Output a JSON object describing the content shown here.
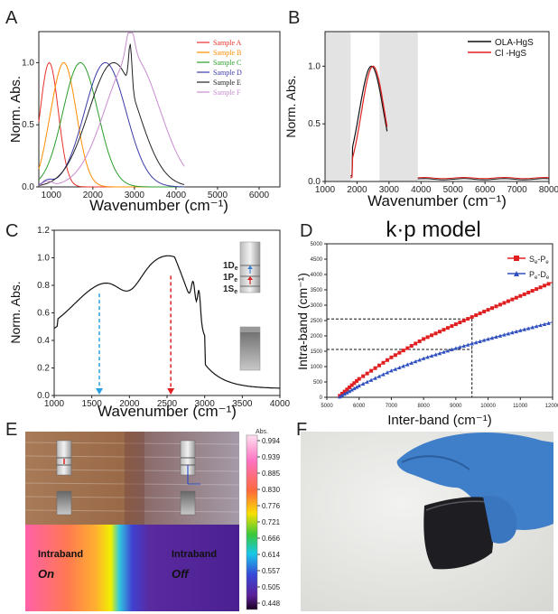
{
  "panels": {
    "A": "A",
    "B": "B",
    "C": "C",
    "D": "D",
    "E": "E",
    "F": "F"
  },
  "chart_data": [
    {
      "panel": "A",
      "type": "line",
      "xlabel": "Wavenumber (cm⁻¹)",
      "ylabel": "Norm. Abs.",
      "xlim": [
        700,
        6500
      ],
      "ylim": [
        0,
        1.25
      ],
      "xticks": [
        1000,
        2000,
        3000,
        4000,
        5000,
        6000
      ],
      "yticks": [
        0.0,
        0.5,
        1.0
      ],
      "series": [
        {
          "name": "Sample A",
          "color": "#e8302a",
          "peak": 950,
          "width": 220
        },
        {
          "name": "Sample B",
          "color": "#ff8c00",
          "peak": 1300,
          "width": 300
        },
        {
          "name": "Sample C",
          "color": "#2a9d2a",
          "peak": 1700,
          "width": 420
        },
        {
          "name": "Sample D",
          "color": "#3a3aa8",
          "peak": 2300,
          "width": 500
        },
        {
          "name": "Sample E",
          "color": "#222222",
          "peak": 2500,
          "width": 600
        },
        {
          "name": "Sample F",
          "color": "#c98bd0",
          "peak": 2950,
          "width": 650
        }
      ]
    },
    {
      "panel": "B",
      "type": "line",
      "xlabel": "Wavenumber (cm⁻¹)",
      "ylabel": "Norm. Abs.",
      "xlim": [
        1000,
        8000
      ],
      "ylim": [
        0,
        1.3
      ],
      "xticks": [
        1000,
        2000,
        3000,
        4000,
        5000,
        6000,
        7000,
        8000
      ],
      "yticks": [
        0.0,
        0.5,
        1.0
      ],
      "shaded": [
        [
          1000,
          1800
        ],
        [
          2700,
          3900
        ]
      ],
      "series": [
        {
          "name": "OLA-HgS",
          "color": "#111111",
          "peak": 2450,
          "width": 380
        },
        {
          "name": "Cl -HgS",
          "color": "#e02020",
          "peak": 2500,
          "width": 360
        }
      ]
    },
    {
      "panel": "C",
      "type": "line",
      "xlabel": "Wavenumber (cm⁻¹)",
      "ylabel": "Norm. Abs.",
      "xlim": [
        1000,
        4000
      ],
      "ylim": [
        0,
        1.2
      ],
      "xticks": [
        1000,
        1500,
        2000,
        2500,
        3000,
        3500,
        4000
      ],
      "yticks": [
        0.0,
        0.2,
        0.4,
        0.6,
        0.8,
        1.0,
        1.2
      ],
      "annotations": [
        {
          "x": 1600,
          "y": 0.74,
          "color": "#2aa0e0"
        },
        {
          "x": 2550,
          "y": 0.87,
          "color": "#e02020"
        }
      ],
      "levels": [
        "1D",
        "1P",
        "1S"
      ],
      "level_subscript": "e"
    },
    {
      "panel": "D",
      "type": "scatter",
      "title": "k·p model",
      "xlabel": "Inter-band (cm⁻¹)",
      "ylabel": "Intra-band (cm⁻¹)",
      "xlim": [
        5000,
        12000
      ],
      "ylim": [
        0,
        5000
      ],
      "xticks": [
        5000,
        6000,
        7000,
        8000,
        9000,
        10000,
        11000,
        12000
      ],
      "yticks": [
        0,
        500,
        1000,
        1500,
        2000,
        2500,
        3000,
        3500,
        4000,
        4500,
        5000
      ],
      "series": [
        {
          "name": "Se-Pe",
          "color": "#e02020",
          "marker": "square",
          "x": [
            5400,
            6000,
            7000,
            8000,
            9000,
            10000,
            11000,
            12000
          ],
          "y": [
            50,
            600,
            1300,
            1900,
            2380,
            2850,
            3300,
            3750
          ]
        },
        {
          "name": "Pe-De",
          "color": "#3050c0",
          "marker": "triangle",
          "x": [
            5400,
            6000,
            7000,
            8000,
            9000,
            10000,
            11000,
            12000
          ],
          "y": [
            20,
            380,
            870,
            1270,
            1600,
            1900,
            2180,
            2450
          ]
        }
      ],
      "guides": {
        "x": 9500,
        "y1": 2550,
        "y2": 1560
      }
    }
  ],
  "panelD": {
    "title": "k·p model",
    "legend_s": "S",
    "legend_s_sub1": "e",
    "legend_s_mid": "-P",
    "legend_s_sub2": "e",
    "legend_p": "P",
    "legend_p_sub1": "e",
    "legend_p_mid": "-D",
    "legend_p_sub2": "e"
  },
  "panelE": {
    "colorbar_title": "Abs.",
    "colorbar_ticks": [
      "0.994",
      "0.939",
      "0.885",
      "0.830",
      "0.776",
      "0.721",
      "0.666",
      "0.614",
      "0.557",
      "0.505",
      "0.448"
    ],
    "left_text1": "Intraband",
    "left_text2": "On",
    "right_text1": "Intraband",
    "right_text2": "Off"
  }
}
